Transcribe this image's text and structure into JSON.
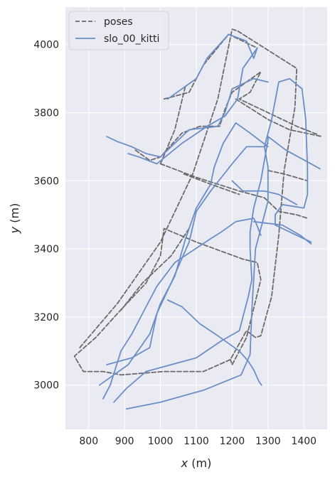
{
  "chart_data": {
    "type": "line",
    "xlabel_var": "x",
    "xlabel_unit": "(m)",
    "ylabel_var": "y",
    "ylabel_unit": "(m)",
    "xlim": [
      735,
      1465
    ],
    "ylim": [
      2870,
      4110
    ],
    "xticks": [
      800,
      900,
      1000,
      1100,
      1200,
      1300,
      1400
    ],
    "yticks": [
      3000,
      3200,
      3400,
      3600,
      3800,
      4000
    ],
    "grid": true,
    "legend_position": "top-left",
    "series": [
      {
        "name": "poses",
        "color": "#6b6b6b",
        "style": "dashed",
        "segments": [
          [
            [
              775,
              3110
            ],
            [
              880,
              3240
            ],
            [
              1000,
              3420
            ],
            [
              1090,
              3620
            ],
            [
              1160,
              3840
            ],
            [
              1200,
              4045
            ],
            [
              1215,
              4040
            ],
            [
              1380,
              3930
            ],
            [
              1375,
              3815
            ],
            [
              1345,
              3630
            ],
            [
              1330,
              3440
            ],
            [
              1310,
              3260
            ],
            [
              1280,
              3145
            ],
            [
              1265,
              3140
            ],
            [
              1240,
              3160
            ],
            [
              1195,
              3075
            ],
            [
              1120,
              3040
            ],
            [
              1010,
              3040
            ],
            [
              890,
              3030
            ],
            [
              840,
              3040
            ],
            [
              785,
              3040
            ],
            [
              760,
              3085
            ],
            [
              820,
              3140
            ],
            [
              880,
              3210
            ],
            [
              960,
              3300
            ],
            [
              1000,
              3380
            ],
            [
              1010,
              3460
            ],
            [
              1100,
              3420
            ],
            [
              1230,
              3370
            ],
            [
              1270,
              3360
            ],
            [
              1280,
              3310
            ],
            [
              1240,
              3140
            ],
            [
              1200,
              3060
            ],
            [
              1195,
              3075
            ]
          ],
          [
            [
              930,
              3690
            ],
            [
              970,
              3660
            ],
            [
              1000,
              3670
            ],
            [
              1060,
              3740
            ],
            [
              1110,
              3760
            ],
            [
              1165,
              3760
            ],
            [
              1180,
              3810
            ],
            [
              1200,
              3860
            ],
            [
              1280,
              3920
            ],
            [
              1250,
              3860
            ],
            [
              1220,
              3840
            ],
            [
              1380,
              3760
            ],
            [
              1440,
              3735
            ]
          ],
          [
            [
              1000,
              3650
            ],
            [
              1100,
              3610
            ],
            [
              1220,
              3570
            ],
            [
              1290,
              3550
            ],
            [
              1330,
              3510
            ],
            [
              1380,
              3500
            ],
            [
              1410,
              3490
            ]
          ],
          [
            [
              1065,
              3620
            ],
            [
              1140,
              3590
            ],
            [
              1220,
              3560
            ]
          ],
          [
            [
              1300,
              3630
            ],
            [
              1345,
              3620
            ],
            [
              1410,
              3600
            ]
          ],
          [
            [
              1210,
              3840
            ],
            [
              1300,
              3780
            ],
            [
              1360,
              3750
            ],
            [
              1450,
              3730
            ]
          ],
          [
            [
              1010,
              3840
            ],
            [
              1080,
              3860
            ],
            [
              1120,
              3940
            ],
            [
              1190,
              4030
            ],
            [
              1270,
              3990
            ]
          ],
          [
            [
              1000,
              3650
            ],
            [
              1040,
              3750
            ],
            [
              1070,
              3880
            ]
          ],
          [
            [
              890,
              3220
            ],
            [
              950,
              3300
            ],
            [
              1030,
              3380
            ],
            [
              1080,
              3460
            ]
          ]
        ]
      },
      {
        "name": "slo_00_kitti",
        "color": "#6b8ec6",
        "style": "solid",
        "segments": [
          [
            [
              905,
              2930
            ],
            [
              1000,
              2950
            ],
            [
              1120,
              2985
            ],
            [
              1225,
              3030
            ],
            [
              1250,
              3090
            ],
            [
              1255,
              3220
            ],
            [
              1265,
              3400
            ],
            [
              1300,
              3540
            ],
            [
              1300,
              3640
            ],
            [
              1290,
              3700
            ],
            [
              1310,
              3780
            ],
            [
              1330,
              3890
            ],
            [
              1360,
              3900
            ],
            [
              1395,
              3870
            ],
            [
              1405,
              3780
            ],
            [
              1410,
              3640
            ],
            [
              1410,
              3560
            ],
            [
              1400,
              3520
            ],
            [
              1340,
              3530
            ],
            [
              1320,
              3500
            ],
            [
              1320,
              3470
            ],
            [
              1360,
              3450
            ],
            [
              1420,
              3420
            ]
          ],
          [
            [
              870,
              2950
            ],
            [
              905,
              2990
            ],
            [
              960,
              3040
            ],
            [
              1100,
              3080
            ],
            [
              1170,
              3130
            ],
            [
              1220,
              3160
            ],
            [
              1245,
              3260
            ],
            [
              1255,
              3310
            ],
            [
              1250,
              3400
            ],
            [
              1250,
              3450
            ],
            [
              1260,
              3520
            ],
            [
              1280,
              3600
            ],
            [
              1300,
              3720
            ],
            [
              1300,
              3730
            ],
            [
              1350,
              3690
            ],
            [
              1420,
              3650
            ],
            [
              1445,
              3635
            ]
          ],
          [
            [
              840,
              2960
            ],
            [
              860,
              3000
            ],
            [
              890,
              3100
            ],
            [
              920,
              3150
            ],
            [
              960,
              3230
            ],
            [
              990,
              3290
            ],
            [
              1040,
              3360
            ],
            [
              1140,
              3430
            ],
            [
              1170,
              3450
            ],
            [
              1210,
              3480
            ],
            [
              1260,
              3490
            ],
            [
              1265,
              3480
            ],
            [
              1280,
              3440
            ]
          ],
          [
            [
              850,
              3060
            ],
            [
              920,
              3080
            ],
            [
              970,
              3110
            ],
            [
              990,
              3210
            ],
            [
              1030,
              3300
            ],
            [
              1080,
              3420
            ],
            [
              1100,
              3510
            ],
            [
              1140,
              3570
            ],
            [
              1170,
              3610
            ],
            [
              1200,
              3650
            ],
            [
              1240,
              3700
            ],
            [
              1290,
              3700
            ],
            [
              1300,
              3710
            ]
          ],
          [
            [
              830,
              3000
            ],
            [
              910,
              3060
            ],
            [
              970,
              3150
            ],
            [
              1000,
              3240
            ],
            [
              1040,
              3320
            ],
            [
              1070,
              3430
            ],
            [
              1100,
              3520
            ],
            [
              1140,
              3590
            ],
            [
              1150,
              3640
            ],
            [
              1175,
              3710
            ],
            [
              1210,
              3770
            ],
            [
              1250,
              3740
            ],
            [
              1300,
              3700
            ]
          ],
          [
            [
              850,
              3730
            ],
            [
              880,
              3715
            ],
            [
              920,
              3700
            ],
            [
              960,
              3680
            ],
            [
              1000,
              3670
            ],
            [
              1030,
              3700
            ],
            [
              1080,
              3750
            ],
            [
              1160,
              3760
            ],
            [
              1180,
              3800
            ],
            [
              1200,
              3870
            ],
            [
              1260,
              3900
            ],
            [
              1300,
              3890
            ]
          ],
          [
            [
              910,
              3680
            ],
            [
              940,
              3670
            ],
            [
              990,
              3650
            ],
            [
              1060,
              3710
            ],
            [
              1130,
              3760
            ],
            [
              1180,
              3790
            ],
            [
              1215,
              3840
            ],
            [
              1230,
              3930
            ],
            [
              1270,
              3990
            ],
            [
              1260,
              3960
            ],
            [
              1240,
              4010
            ],
            [
              1190,
              4030
            ],
            [
              1130,
              3960
            ],
            [
              1100,
              3900
            ],
            [
              1060,
              3870
            ],
            [
              1020,
              3840
            ]
          ],
          [
            [
              1200,
              3600
            ],
            [
              1230,
              3570
            ],
            [
              1290,
              3570
            ],
            [
              1330,
              3560
            ],
            [
              1380,
              3530
            ]
          ],
          [
            [
              1260,
              3480
            ],
            [
              1340,
              3470
            ],
            [
              1390,
              3440
            ],
            [
              1420,
              3415
            ]
          ],
          [
            [
              1020,
              3250
            ],
            [
              1060,
              3230
            ],
            [
              1110,
              3180
            ],
            [
              1160,
              3145
            ],
            [
              1220,
              3100
            ],
            [
              1245,
              3070
            ],
            [
              1260,
              3045
            ],
            [
              1275,
              3010
            ],
            [
              1282,
              3000
            ]
          ]
        ]
      }
    ]
  }
}
